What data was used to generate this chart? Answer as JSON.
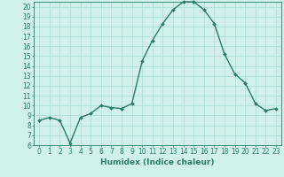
{
  "x": [
    0,
    1,
    2,
    3,
    4,
    5,
    6,
    7,
    8,
    9,
    10,
    11,
    12,
    13,
    14,
    15,
    16,
    17,
    18,
    19,
    20,
    21,
    22,
    23
  ],
  "y": [
    8.5,
    8.8,
    8.5,
    6.2,
    8.8,
    9.2,
    10.0,
    9.8,
    9.7,
    10.2,
    14.5,
    16.6,
    18.3,
    19.7,
    20.5,
    20.5,
    19.7,
    18.3,
    15.2,
    13.2,
    12.3,
    10.2,
    9.5,
    9.7
  ],
  "line_color": "#2d7a66",
  "marker": "D",
  "markersize": 2.0,
  "linewidth": 1.0,
  "bg_color": "#cff0eb",
  "grid_color": "#aaddd6",
  "xlabel": "Humidex (Indice chaleur)",
  "xlabel_fontsize": 6.5,
  "ylim": [
    6,
    20.5
  ],
  "xlim": [
    -0.5,
    23.5
  ],
  "yticks": [
    6,
    7,
    8,
    9,
    10,
    11,
    12,
    13,
    14,
    15,
    16,
    17,
    18,
    19,
    20
  ],
  "xticks": [
    0,
    1,
    2,
    3,
    4,
    5,
    6,
    7,
    8,
    9,
    10,
    11,
    12,
    13,
    14,
    15,
    16,
    17,
    18,
    19,
    20,
    21,
    22,
    23
  ],
  "tick_fontsize": 5.5,
  "tick_color": "#2d7a66",
  "spine_color": "#2d7a66"
}
